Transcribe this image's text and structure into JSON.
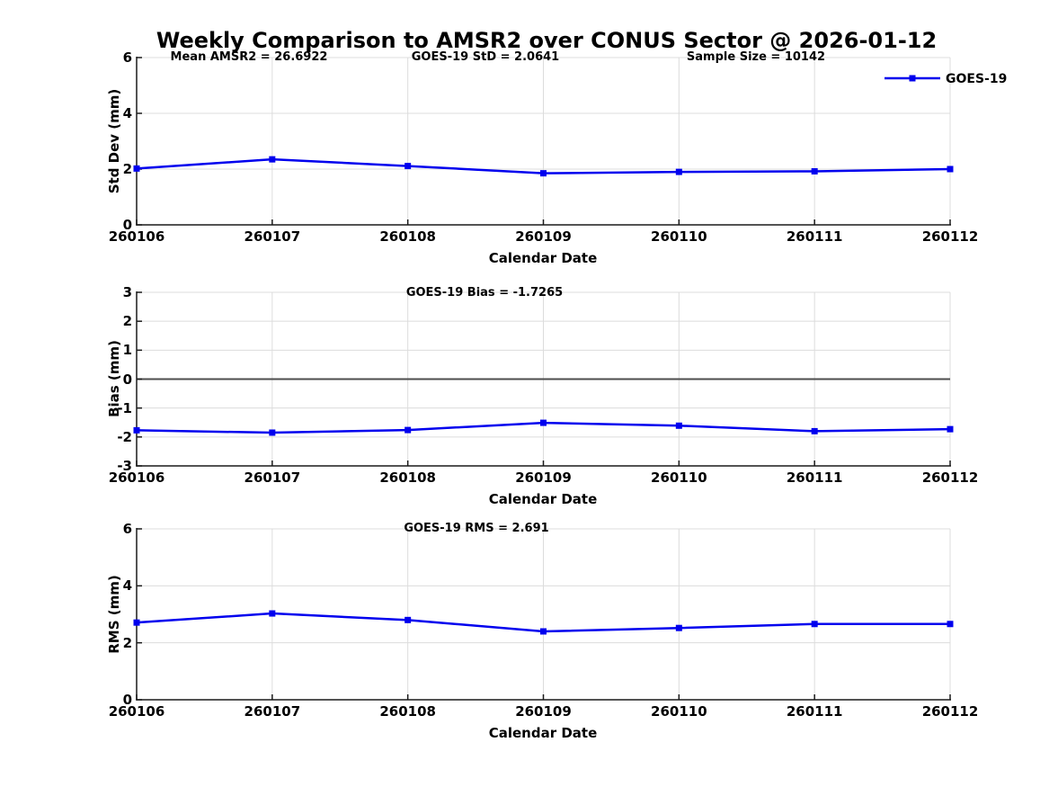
{
  "title": "Weekly Comparison to AMSR2 over CONUS Sector @ 2026-01-12",
  "legend": {
    "label": "GOES-19",
    "position": "top-right"
  },
  "colors": {
    "line": "#0000EE",
    "grid": "#dcdcdc",
    "axis": "#1a1a1a",
    "zero_line": "#4d4d4d",
    "text": "#000000",
    "background": "#ffffff"
  },
  "chart_data": [
    {
      "type": "line",
      "ylabel": "Std Dev (mm)",
      "xlabel": "Calendar Date",
      "x": [
        "260106",
        "260107",
        "260108",
        "260109",
        "260110",
        "260111",
        "260112"
      ],
      "series": [
        {
          "name": "GOES-19",
          "values": [
            2.02,
            2.35,
            2.11,
            1.85,
            1.9,
            1.92,
            2.0
          ]
        }
      ],
      "ylim": [
        0,
        6
      ],
      "yticks": [
        0,
        2,
        4,
        6
      ],
      "grid": true,
      "zero_line": false,
      "annotations": [
        {
          "text": "Mean AMSR2 = 26.6922"
        },
        {
          "text": "GOES-19 StD = 2.0641"
        },
        {
          "text": "Sample Size = 10142"
        }
      ]
    },
    {
      "type": "line",
      "ylabel": "Bias (mm)",
      "xlabel": "Calendar Date",
      "x": [
        "260106",
        "260107",
        "260108",
        "260109",
        "260110",
        "260111",
        "260112"
      ],
      "series": [
        {
          "name": "GOES-19",
          "values": [
            -1.77,
            -1.85,
            -1.76,
            -1.51,
            -1.61,
            -1.8,
            -1.73
          ]
        }
      ],
      "ylim": [
        -3,
        3
      ],
      "yticks": [
        -3,
        -2,
        -1,
        0,
        1,
        2,
        3
      ],
      "grid": true,
      "zero_line": true,
      "annotations": [
        {
          "text": "GOES-19 Bias  = -1.7265"
        }
      ]
    },
    {
      "type": "line",
      "ylabel": "RMS (mm)",
      "xlabel": "Calendar Date",
      "x": [
        "260106",
        "260107",
        "260108",
        "260109",
        "260110",
        "260111",
        "260112"
      ],
      "series": [
        {
          "name": "GOES-19",
          "values": [
            2.71,
            3.03,
            2.8,
            2.4,
            2.52,
            2.66,
            2.66
          ]
        }
      ],
      "ylim": [
        0,
        6
      ],
      "yticks": [
        0,
        2,
        4,
        6
      ],
      "grid": true,
      "zero_line": false,
      "annotations": [
        {
          "text": "GOES-19 RMS = 2.691"
        }
      ]
    }
  ]
}
